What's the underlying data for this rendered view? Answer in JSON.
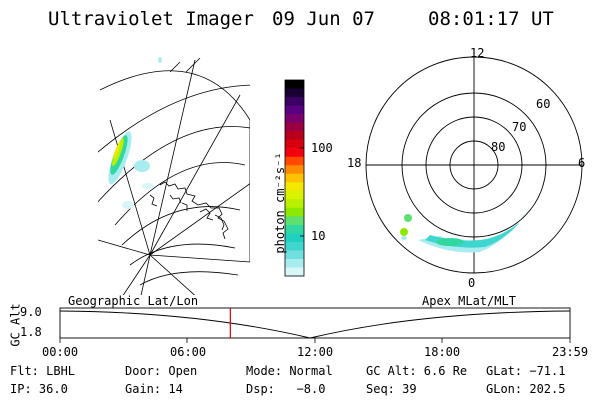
{
  "header": {
    "instrument": "Ultraviolet Imager",
    "date": "09 Jun 07",
    "time": "08:01:17 UT"
  },
  "colorbar": {
    "label": "photon cm⁻²s⁻¹",
    "ticks": [
      "100",
      "10"
    ],
    "colors": [
      "#000000",
      "#1b0033",
      "#3a0062",
      "#5a0083",
      "#7a006c",
      "#9a0040",
      "#b8001a",
      "#d8000f",
      "#f20010",
      "#ff4a00",
      "#ff8c00",
      "#ffc200",
      "#f2e800",
      "#d8f200",
      "#b8f000",
      "#8ee800",
      "#5ee070",
      "#30d8a0",
      "#20d0c0",
      "#40d6d0",
      "#70dfe0",
      "#a8ecf0",
      "#d8f6f8"
    ]
  },
  "polar_plot": {
    "lat_labels": [
      "60",
      "70",
      "80"
    ],
    "mlt_labels": {
      "top": "12",
      "left": "18",
      "right": "6",
      "bottom": "0"
    }
  },
  "timeline": {
    "left_title": "Geographic Lat/Lon",
    "right_title": "Apex MLat/MLT",
    "axis_label": "GC Alt",
    "y_ticks": [
      "9.0",
      "1.8"
    ],
    "x_ticks": [
      "00:00",
      "06:00",
      "12:00",
      "18:00",
      "23:59"
    ],
    "current_time_fraction": 0.334
  },
  "info": {
    "row1": {
      "flt": "Flt: LBHL",
      "door": "Door: Open",
      "mode": "Mode: Normal",
      "gcalt": "GC Alt: 6.6 Re",
      "glat": "GLat: −71.1"
    },
    "row2": {
      "ip": "IP: 36.0",
      "gain": "Gain: 14",
      "dsp": "Dsp:   −8.0",
      "seq": "Seq: 39",
      "glon": "GLon: 202.5"
    }
  }
}
